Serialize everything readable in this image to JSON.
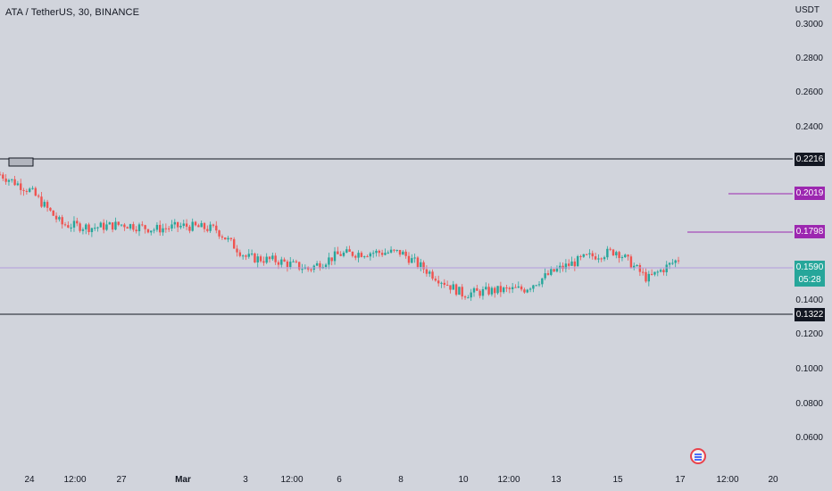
{
  "title": "ATA / TetherUS, 30, BINANCE",
  "unit": "USDT",
  "y_axis_ticks": [
    "0.3000",
    "0.2800",
    "0.2600",
    "0.2400",
    "0.1400",
    "0.1200",
    "0.1000",
    "0.0800",
    "0.0600"
  ],
  "x_axis_labels": [
    {
      "text": "24",
      "bold": false
    },
    {
      "text": "12:00",
      "bold": false
    },
    {
      "text": "27",
      "bold": false
    },
    {
      "text": "Mar",
      "bold": true
    },
    {
      "text": "3",
      "bold": false
    },
    {
      "text": "12:00",
      "bold": false
    },
    {
      "text": "6",
      "bold": false
    },
    {
      "text": "8",
      "bold": false
    },
    {
      "text": "10",
      "bold": false
    },
    {
      "text": "12:00",
      "bold": false
    },
    {
      "text": "13",
      "bold": false
    },
    {
      "text": "15",
      "bold": false
    },
    {
      "text": "17",
      "bold": false
    },
    {
      "text": "12:00",
      "bold": false
    },
    {
      "text": "20",
      "bold": false
    }
  ],
  "levels": {
    "resistance_high": "0.2216",
    "target_1": "0.2019",
    "target_2": "0.1798",
    "current_price": "0.1590",
    "countdown": "05:28",
    "support_low": "0.1322"
  },
  "colors": {
    "background": "#d1d4dc",
    "up_candle": "#26a69a",
    "down_candle": "#ef5350",
    "level_line": "#131722",
    "target_line": "#9c27b0",
    "current_line": "#b39ddb",
    "current_tag": "#26a69a"
  },
  "chart_data": {
    "type": "line",
    "title": "ATA / TetherUS, 30, BINANCE",
    "ylabel": "USDT",
    "ylim": [
      0.05,
      0.3
    ],
    "x_range": [
      "Feb 23",
      "Mar 20"
    ],
    "grid": false,
    "series": [
      {
        "name": "",
        "x": [
          "Feb 23",
          "Feb 24",
          "Feb 25",
          "Feb 26",
          "Feb 27",
          "Feb 28",
          "Mar 1",
          "Mar 2",
          "Mar 3",
          "Mar 4",
          "Mar 5",
          "Mar 6",
          "Mar 7",
          "Mar 8",
          "Mar 9",
          "Mar 10",
          "Mar 11",
          "Mar 12",
          "Mar 13",
          "Mar 14",
          "Mar 15",
          "Mar 16",
          "Mar 17"
        ],
        "values": [
          0.21,
          0.2,
          0.18,
          0.178,
          0.18,
          0.177,
          0.179,
          0.177,
          0.16,
          0.158,
          0.153,
          0.162,
          0.163,
          0.163,
          0.15,
          0.138,
          0.14,
          0.141,
          0.152,
          0.16,
          0.164,
          0.147,
          0.159
        ]
      }
    ],
    "horizontal_levels": [
      0.2216,
      0.2019,
      0.1798,
      0.159,
      0.1322
    ]
  }
}
